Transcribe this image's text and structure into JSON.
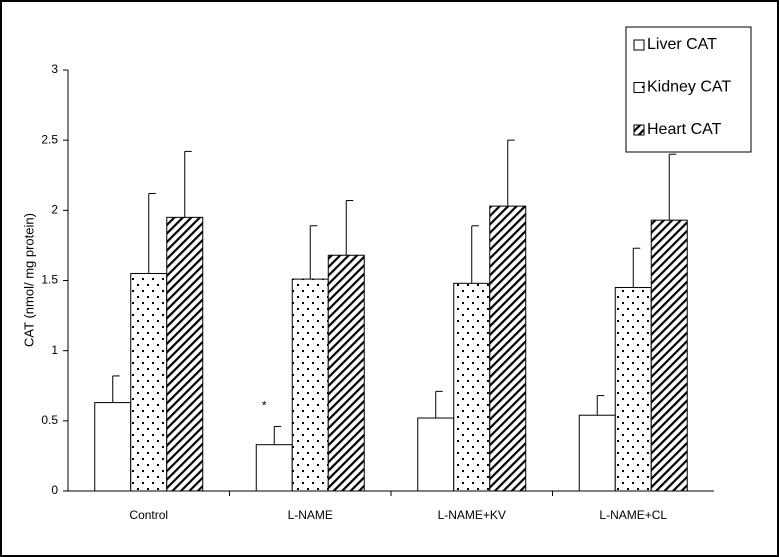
{
  "chart_data": {
    "type": "bar",
    "y_label": "CAT (nmol/ mg protein)",
    "categories": [
      "Control",
      "L-NAME",
      "L-NAME+KV",
      "L-NAME+CL"
    ],
    "series": [
      {
        "name": "Liver CAT",
        "color": "#ffffff",
        "pattern": "none",
        "values": [
          0.63,
          0.33,
          0.52,
          0.54
        ],
        "errors": [
          0.19,
          0.13,
          0.19,
          0.14
        ]
      },
      {
        "name": "Kidney CAT",
        "color": "#ffffff",
        "pattern": "dots",
        "values": [
          1.55,
          1.51,
          1.48,
          1.45
        ],
        "errors": [
          0.57,
          0.38,
          0.41,
          0.28
        ]
      },
      {
        "name": "Heart CAT",
        "color": "#ffffff",
        "pattern": "hatch",
        "values": [
          1.95,
          1.68,
          2.03,
          1.93
        ],
        "errors": [
          0.47,
          0.39,
          0.47,
          0.47
        ]
      }
    ],
    "annotations": [
      "*"
    ],
    "ylim": [
      0,
      3
    ],
    "yticks": [
      0,
      0.5,
      1,
      1.5,
      2,
      2.5,
      3
    ],
    "legend": "top-right"
  }
}
